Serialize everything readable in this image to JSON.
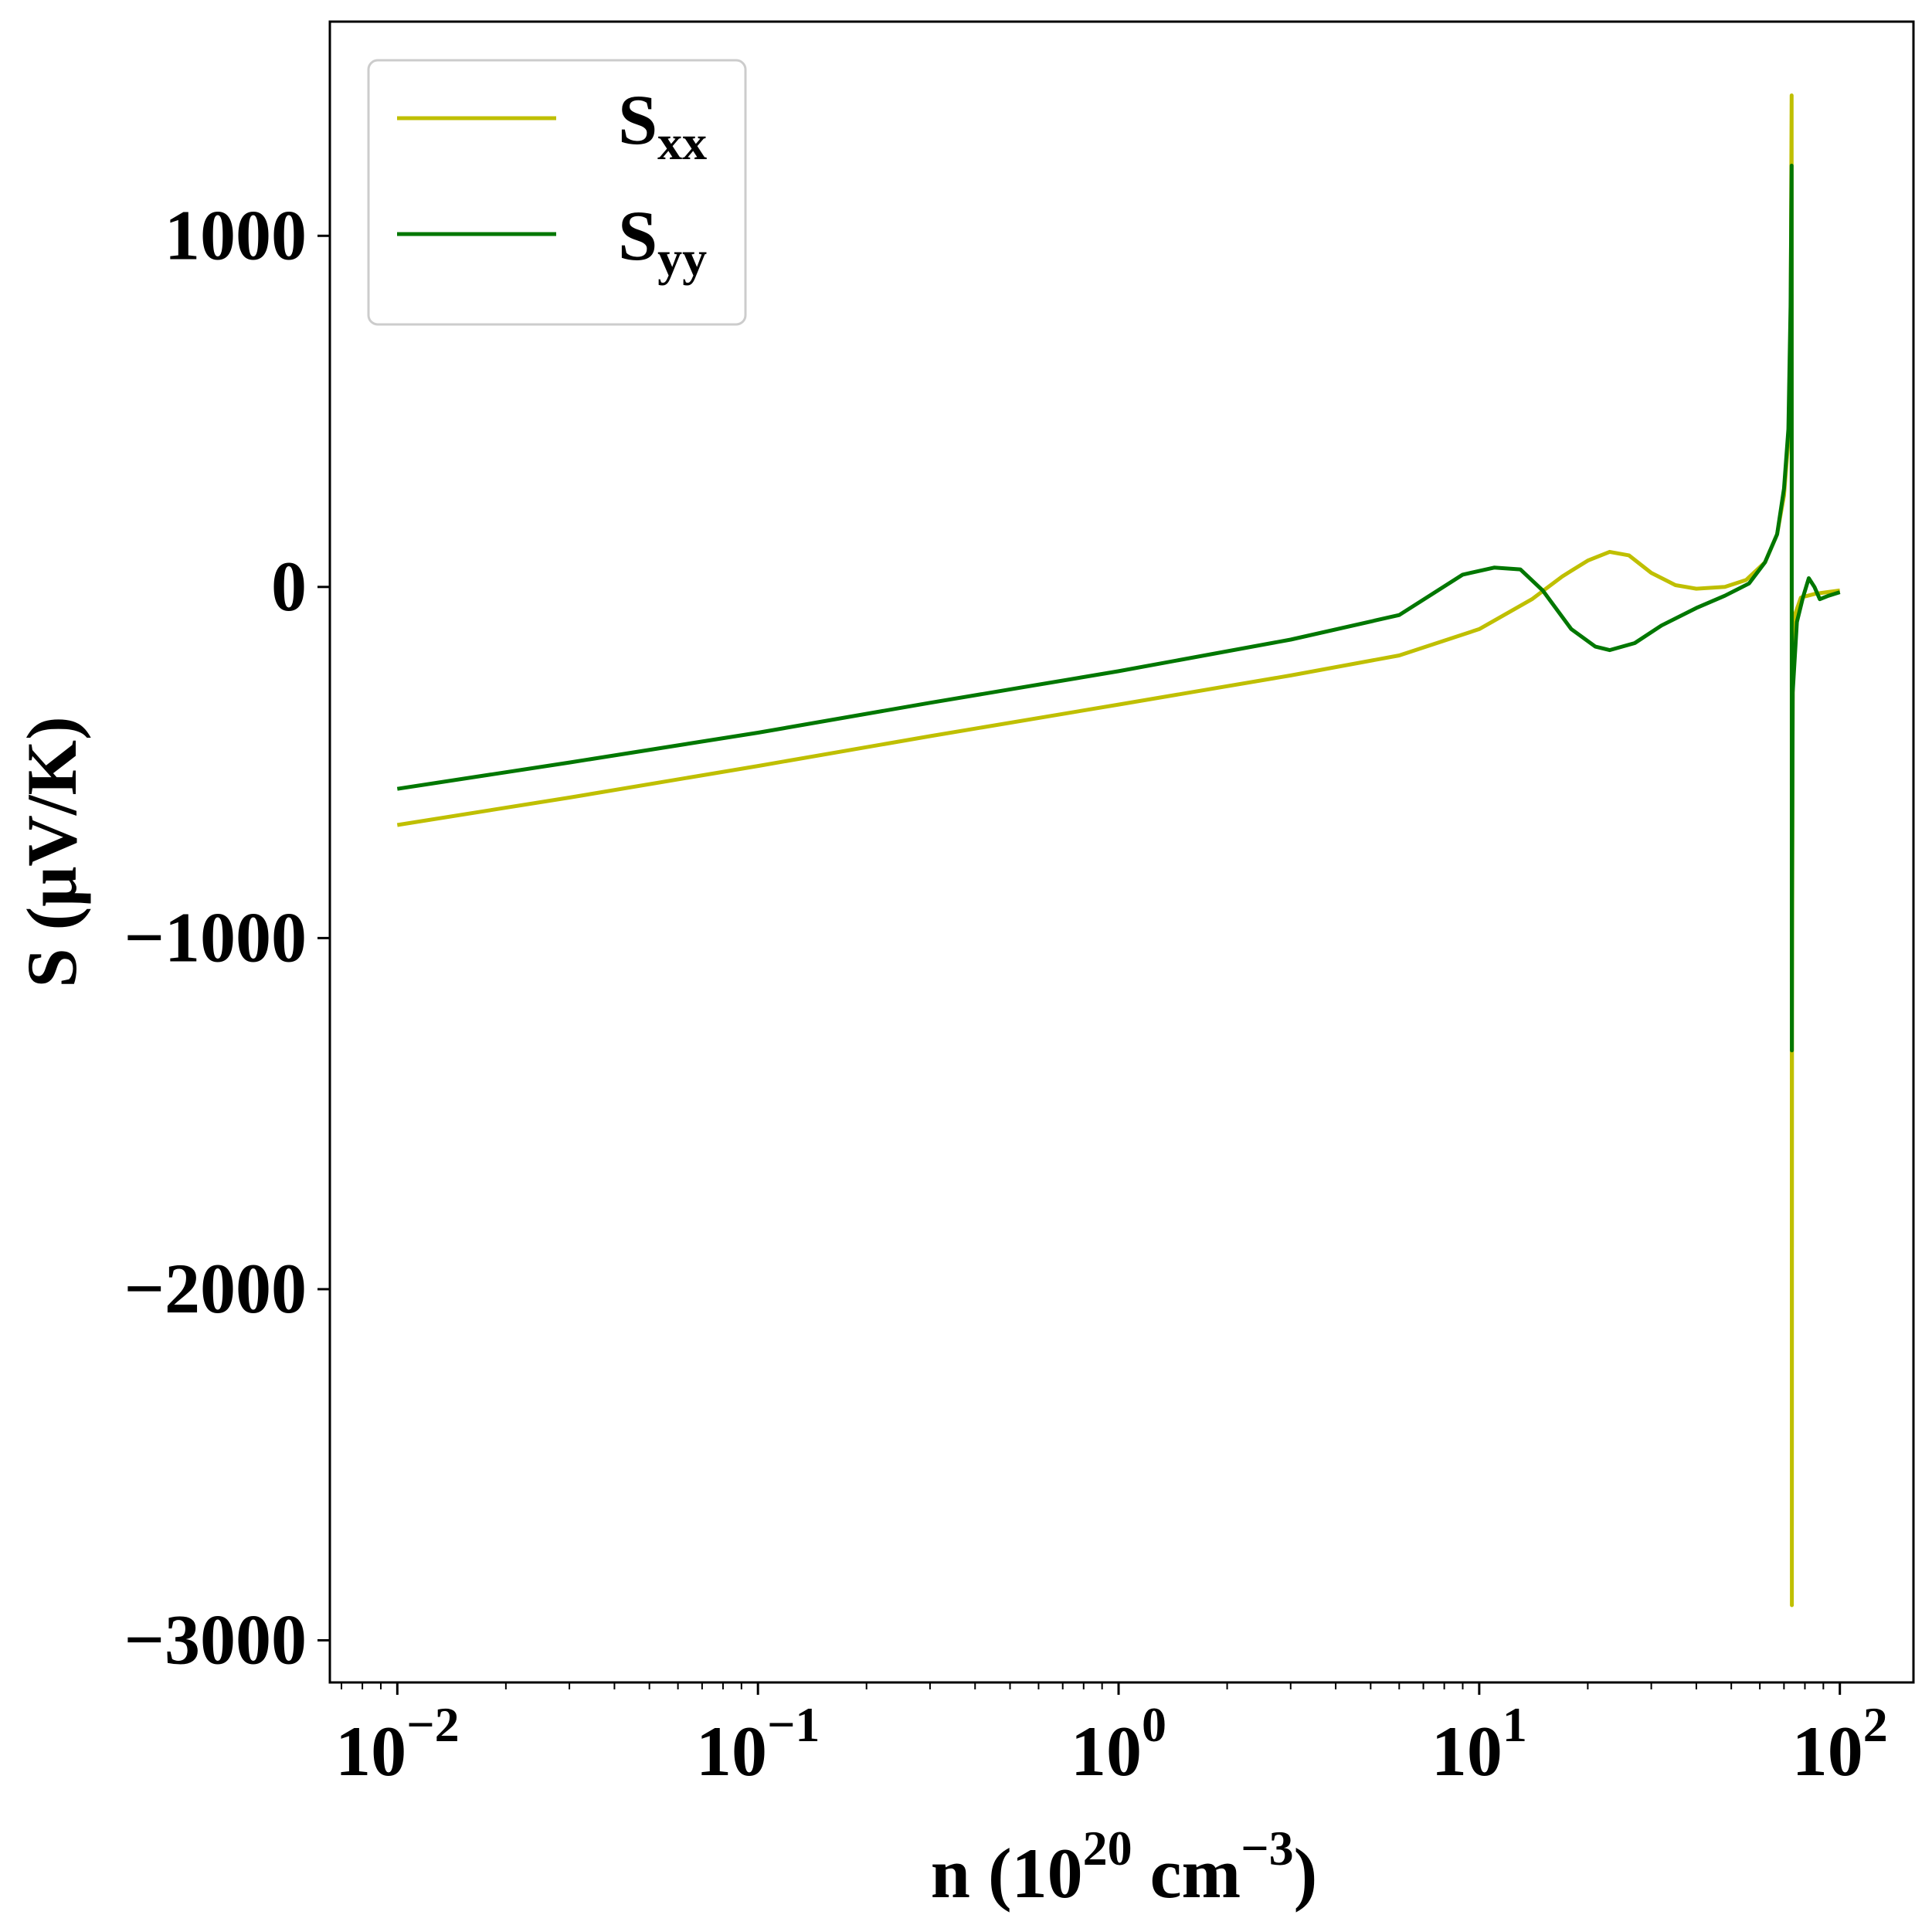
{
  "chart_data": {
    "type": "line",
    "title": "",
    "xlabel": "n (10^20 cm^-3)",
    "xlabel_parts": {
      "prefix": "n (10",
      "sup1": "20",
      "mid": " cm",
      "sup2": "−3",
      "suffix": ")"
    },
    "ylabel": "S (μV/K)",
    "xscale": "log",
    "xlim": [
      0.0065,
      160
    ],
    "ylim": [
      -3120,
      1610
    ],
    "grid": false,
    "legend_position": "top-left",
    "x_ticks": [
      {
        "value": 0.01,
        "base": "10",
        "exp": "−2"
      },
      {
        "value": 0.1,
        "base": "10",
        "exp": "−1"
      },
      {
        "value": 1,
        "base": "10",
        "exp": "0"
      },
      {
        "value": 10,
        "base": "10",
        "exp": "1"
      },
      {
        "value": 100,
        "base": "10",
        "exp": "2"
      }
    ],
    "y_ticks": [
      {
        "value": 1000,
        "label": "1000"
      },
      {
        "value": 0,
        "label": "0"
      },
      {
        "value": -1000,
        "label": "−1000"
      },
      {
        "value": -2000,
        "label": "−2000"
      },
      {
        "value": -3000,
        "label": "−3000"
      }
    ],
    "series": [
      {
        "name": "S_xx",
        "legend_main": "S",
        "legend_sub": "xx",
        "color": "#bfbf00",
        "points": [
          [
            0.01,
            -678
          ],
          [
            0.03,
            -600
          ],
          [
            0.1,
            -510
          ],
          [
            0.3,
            -425
          ],
          [
            1,
            -335
          ],
          [
            3,
            -252
          ],
          [
            6,
            -195
          ],
          [
            10,
            -120
          ],
          [
            14,
            -35
          ],
          [
            17,
            30
          ],
          [
            20,
            75
          ],
          [
            23,
            100
          ],
          [
            26,
            90
          ],
          [
            30,
            40
          ],
          [
            35,
            5
          ],
          [
            40,
            -5
          ],
          [
            48,
            0
          ],
          [
            55,
            20
          ],
          [
            62,
            70
          ],
          [
            67,
            150
          ],
          [
            70,
            260
          ],
          [
            72,
            420
          ],
          [
            73,
            700
          ],
          [
            73.5,
            1400
          ],
          [
            73.6,
            -2900
          ],
          [
            73.7,
            -1200
          ],
          [
            74,
            -300
          ],
          [
            75,
            -80
          ],
          [
            78,
            -30
          ],
          [
            85,
            -20
          ],
          [
            92,
            -15
          ],
          [
            100,
            -10
          ]
        ]
      },
      {
        "name": "S_yy",
        "legend_main": "S",
        "legend_sub": "yy",
        "color": "#007700",
        "points": [
          [
            0.01,
            -575
          ],
          [
            0.03,
            -500
          ],
          [
            0.1,
            -415
          ],
          [
            0.3,
            -330
          ],
          [
            1,
            -240
          ],
          [
            3,
            -150
          ],
          [
            6,
            -80
          ],
          [
            9,
            35
          ],
          [
            11,
            55
          ],
          [
            13,
            50
          ],
          [
            15,
            -10
          ],
          [
            18,
            -120
          ],
          [
            21,
            -170
          ],
          [
            23,
            -180
          ],
          [
            27,
            -160
          ],
          [
            32,
            -110
          ],
          [
            40,
            -60
          ],
          [
            48,
            -25
          ],
          [
            56,
            10
          ],
          [
            62,
            70
          ],
          [
            67,
            150
          ],
          [
            70,
            280
          ],
          [
            72,
            450
          ],
          [
            73,
            800
          ],
          [
            73.5,
            1200
          ],
          [
            73.6,
            -1320
          ],
          [
            73.7,
            -900
          ],
          [
            74,
            -300
          ],
          [
            76,
            -100
          ],
          [
            79,
            -30
          ],
          [
            82,
            25
          ],
          [
            85,
            0
          ],
          [
            88,
            -35
          ],
          [
            93,
            -25
          ],
          [
            100,
            -15
          ]
        ]
      }
    ]
  }
}
